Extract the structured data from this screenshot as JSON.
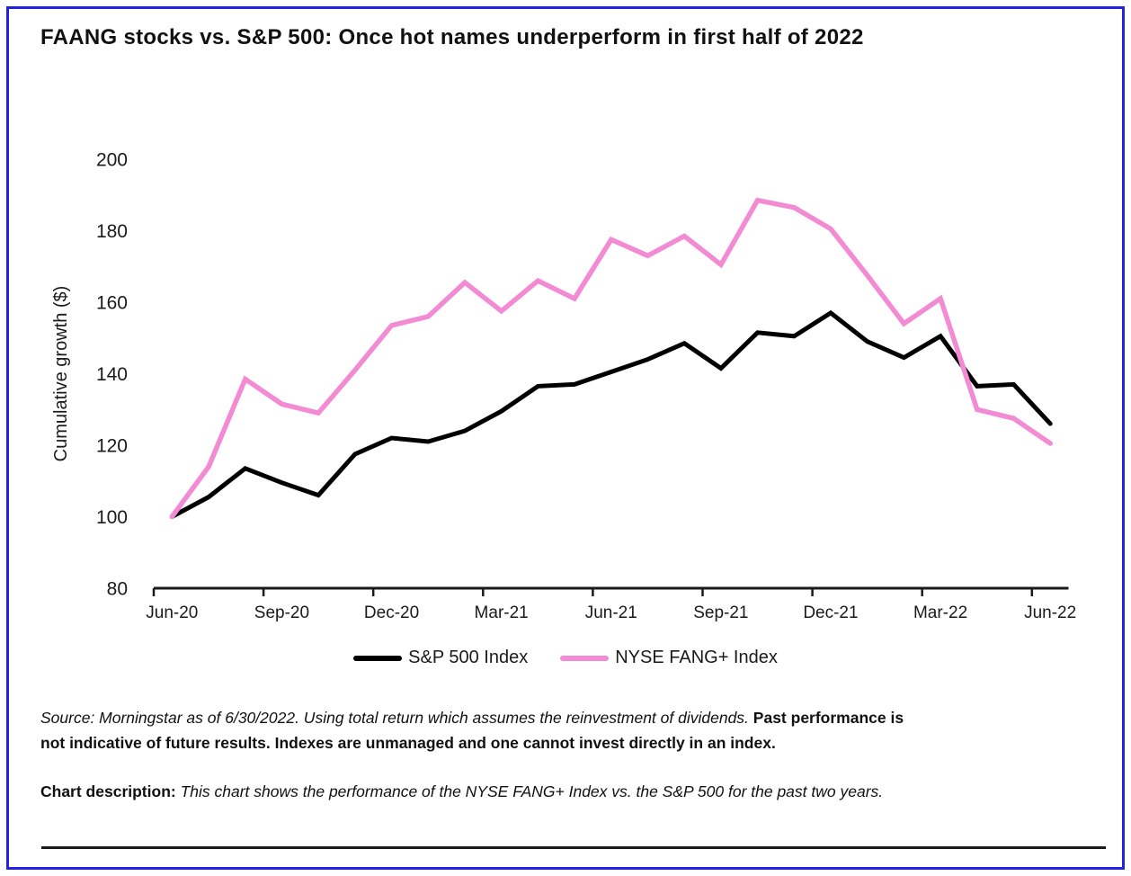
{
  "page": {
    "title": "FAANG stocks vs. S&P 500: Once hot names underperform in first half of 2022"
  },
  "source": {
    "italic": "Source: Morningstar as of 6/30/2022. Using total return which assumes the reinvestment of dividends.",
    "bold_1": "Past performance is",
    "bold_2": "not indicative of future results. Indexes are unmanaged and one cannot invest directly in an index."
  },
  "description": {
    "label": "Chart description:",
    "text": "This chart shows the performance of the NYSE FANG+ Index vs. the S&P 500 for the past two years."
  },
  "colors": {
    "border_blue": "#2222e2",
    "sp500_black": "#000000",
    "fang_pink": "#f28bd3",
    "text": "#1a1a1a"
  },
  "chart_data": {
    "type": "line",
    "title": "FAANG stocks vs. S&P 500: Once hot names underperform in first half of 2022",
    "xlabel": "",
    "ylabel": "Cumulative growth ($)",
    "ylim": [
      80,
      200
    ],
    "yticks": [
      80,
      100,
      120,
      140,
      160,
      180,
      200
    ],
    "xtick_labels": [
      "Jun-20",
      "Sep-20",
      "Dec-20",
      "Mar-21",
      "Jun-21",
      "Sep-21",
      "Dec-21",
      "Mar-22",
      "Jun-22"
    ],
    "grid": false,
    "legend_position": "bottom",
    "categories": [
      "Jun-20",
      "Jul-20",
      "Aug-20",
      "Sep-20",
      "Oct-20",
      "Nov-20",
      "Dec-20",
      "Jan-21",
      "Feb-21",
      "Mar-21",
      "Apr-21",
      "May-21",
      "Jun-21",
      "Jul-21",
      "Aug-21",
      "Sep-21",
      "Oct-21",
      "Nov-21",
      "Dec-21",
      "Jan-22",
      "Feb-22",
      "Mar-22",
      "Apr-22",
      "May-22",
      "Jun-22"
    ],
    "series": [
      {
        "name": "S&P 500 Index",
        "color": "#000000",
        "values": [
          100,
          105.5,
          113.5,
          109.5,
          106,
          117.5,
          122,
          121,
          124,
          129.5,
          136.5,
          137,
          140.5,
          144,
          148.5,
          141.5,
          151.5,
          150.5,
          157,
          149,
          144.5,
          150.5,
          136.5,
          137,
          126
        ]
      },
      {
        "name": "NYSE FANG+ Index",
        "color": "#f28bd3",
        "values": [
          100,
          114,
          138.5,
          131.5,
          129,
          141,
          153.5,
          156,
          165.5,
          157.5,
          166,
          161,
          177.5,
          173,
          178.5,
          170.5,
          188.5,
          186.5,
          180.5,
          167.5,
          154,
          161,
          130,
          127.5,
          120.5
        ]
      }
    ]
  }
}
